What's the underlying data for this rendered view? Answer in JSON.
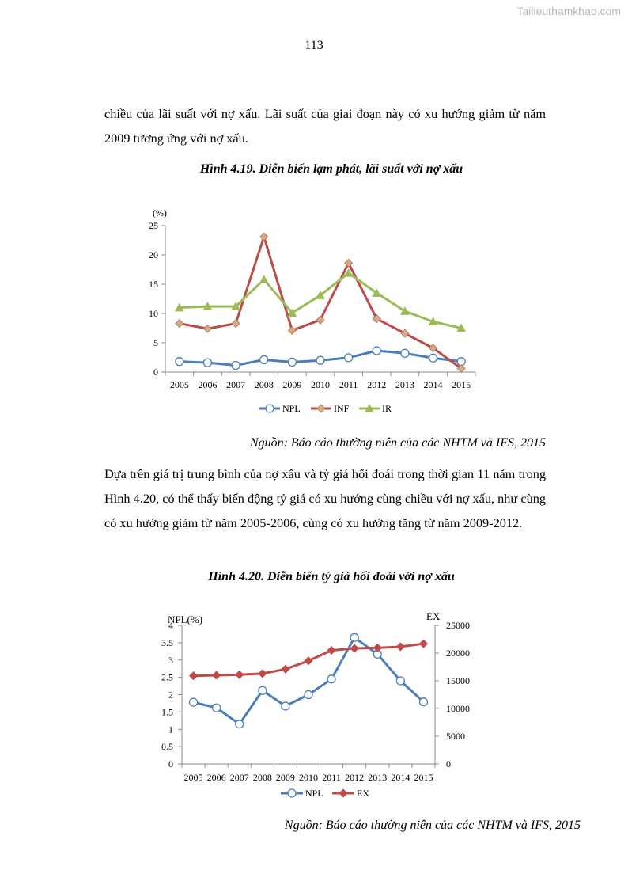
{
  "watermark": "Tailieuthamkhao.com",
  "page_number": "113",
  "paragraph_1": "chiều của lãi suất với nợ xấu. Lãi suất của giai đoạn này có xu hướng giảm từ năm 2009 tương ứng với nợ xấu.",
  "figure_1": {
    "title": "Hình 4.19. Diễn biến lạm phát, lãi suất với nợ xấu",
    "source": "Nguồn: Báo cáo thường niên của các NHTM và IFS, 2015"
  },
  "paragraph_2": "Dựa trên giá trị trung bình của nợ xấu và tỷ giá hối đoái trong thời gian 11 năm trong Hình 4.20, có thể thấy biến động tỷ giá có xu hướng cùng chiều với nợ xấu, như cùng có xu hướng giảm từ năm 2005-2006, cùng có xu hướng tăng từ năm 2009-2012.",
  "figure_2": {
    "title": "Hình 4.20. Diễn biến tỷ giá hối đoái với nợ xấu",
    "source": "Nguồn: Báo cáo thường niên của các NHTM và IFS, 2015"
  },
  "chart_data": [
    {
      "type": "line",
      "title": "",
      "ylabel": "(%)",
      "xlabel": "",
      "ylim": [
        0,
        25
      ],
      "yticks": [
        0,
        5,
        10,
        15,
        20,
        25
      ],
      "grid": false,
      "legend": "bottom",
      "categories": [
        "2005",
        "2006",
        "2007",
        "2008",
        "2009",
        "2010",
        "2011",
        "2012",
        "2013",
        "2014",
        "2015"
      ],
      "series": [
        {
          "name": "NPL",
          "color": "#4a7ebb",
          "marker": "circle",
          "values": [
            1.8,
            1.6,
            1.15,
            2.1,
            1.7,
            2.0,
            2.45,
            3.65,
            3.2,
            2.4,
            1.8
          ]
        },
        {
          "name": "INF",
          "color": "#be4b48",
          "marker": "diamond",
          "values": [
            8.3,
            7.4,
            8.3,
            23.1,
            7.1,
            8.9,
            18.6,
            9.1,
            6.6,
            4.1,
            0.6
          ]
        },
        {
          "name": "IR",
          "color": "#9bbb59",
          "marker": "triangle",
          "values": [
            11.0,
            11.2,
            11.2,
            15.8,
            10.1,
            13.1,
            16.9,
            13.5,
            10.4,
            8.6,
            7.5
          ]
        }
      ]
    },
    {
      "type": "line",
      "title": "",
      "ylabel": "NPL(%)",
      "y2label": "EX",
      "xlabel": "",
      "ylim": [
        0,
        4
      ],
      "y2lim": [
        0,
        25000
      ],
      "yticks": [
        "0",
        "0.5",
        "1",
        "1.5",
        "2",
        "2.5",
        "3",
        "3.5",
        "4"
      ],
      "y2ticks": [
        "0",
        "5000",
        "10000",
        "15000",
        "20000",
        "25000"
      ],
      "grid": false,
      "legend": "bottom",
      "categories": [
        "2005",
        "2006",
        "2007",
        "2008",
        "2009",
        "2010",
        "2011",
        "2012",
        "2013",
        "2014",
        "2015"
      ],
      "series": [
        {
          "name": "NPL",
          "axis": "left",
          "color": "#4a7ebb",
          "marker": "circle",
          "values": [
            1.78,
            1.62,
            1.15,
            2.12,
            1.67,
            2.0,
            2.45,
            3.65,
            3.17,
            2.4,
            1.79
          ]
        },
        {
          "name": "EX",
          "axis": "right",
          "color": "#be4b48",
          "marker": "diamond",
          "values": [
            15900,
            16000,
            16100,
            16300,
            17100,
            18600,
            20500,
            20850,
            20950,
            21150,
            21700
          ]
        }
      ]
    }
  ]
}
